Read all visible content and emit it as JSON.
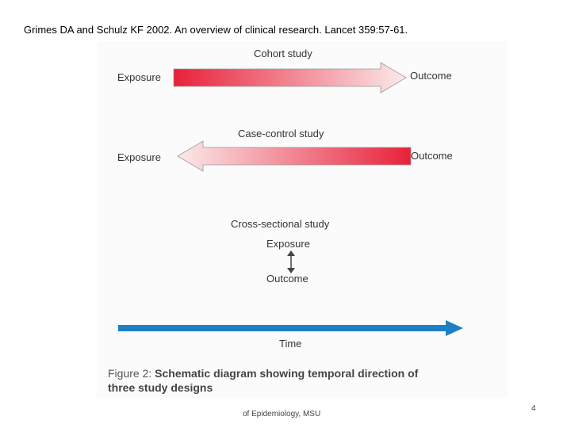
{
  "citation": "Grimes DA and Schulz KF 2002.  An overview of clinical research.  Lancet 359:57-61.",
  "cohort": {
    "title": "Cohort study",
    "left_label": "Exposure",
    "right_label": "Outcome"
  },
  "case_control": {
    "title": "Case-control study",
    "left_label": "Exposure",
    "right_label": "Outcome"
  },
  "cross_sectional": {
    "title": "Cross-sectional study",
    "top_label": "Exposure",
    "bottom_label": "Outcome"
  },
  "time": {
    "label": "Time"
  },
  "caption": {
    "lead": "Figure 2: ",
    "text_line1": "Schematic diagram showing temporal direction of",
    "text_line2": "three study designs"
  },
  "footer": "of Epidemiology, MSU",
  "page_number": "4",
  "colors": {
    "arrow_red": "#e8203a",
    "arrow_pale": "#fbeaea",
    "time_blue": "#1f7fc4"
  }
}
